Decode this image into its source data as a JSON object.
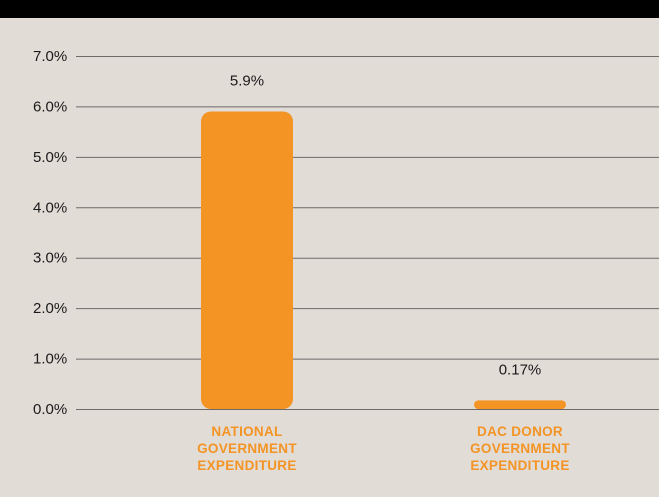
{
  "colors": {
    "background": "#e2dcd7",
    "header_bar": "#000000",
    "bar": "#f39424",
    "category_text": "#f39424",
    "gridline": "#6e6a67"
  },
  "chart_data": {
    "type": "bar",
    "title": "",
    "xlabel": "",
    "ylabel": "",
    "ylim": [
      0,
      7
    ],
    "y_unit": "%",
    "y_ticks": [
      0,
      1,
      2,
      3,
      4,
      5,
      6,
      7
    ],
    "y_tick_labels": [
      "0.0%",
      "1.0%",
      "2.0%",
      "3.0%",
      "4.0%",
      "5.0%",
      "6.0%",
      "7.0%"
    ],
    "grid": true,
    "legend": "none",
    "categories": [
      [
        "NATIONAL",
        "GOVERNMENT",
        "EXPENDITURE"
      ],
      [
        "DAC DONOR",
        "GOVERNMENT",
        "EXPENDITURE"
      ]
    ],
    "values": [
      5.9,
      0.17
    ],
    "value_labels": [
      "5.9%",
      "0.17%"
    ]
  }
}
